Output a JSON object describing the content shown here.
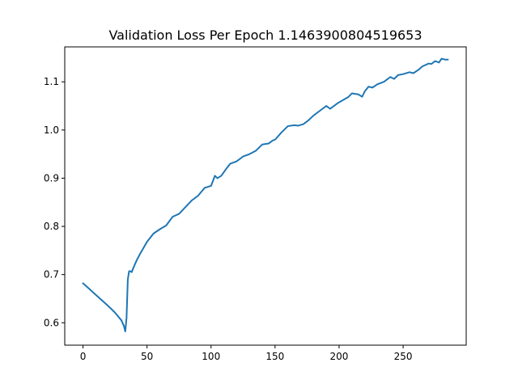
{
  "chart_data": {
    "type": "line",
    "title": "Validation Loss Per Epoch 1.1463900804519653",
    "xlabel": "",
    "ylabel": "",
    "xlim": [
      -14.25,
      299.25
    ],
    "ylim": [
      0.5535,
      1.1725
    ],
    "xticks": [
      0,
      50,
      100,
      150,
      200,
      250
    ],
    "yticks": [
      0.6,
      0.7,
      0.8,
      0.9,
      1.0,
      1.1
    ],
    "ytick_labels": [
      "0.6",
      "0.7",
      "0.8",
      "0.9",
      "1.0",
      "1.1"
    ],
    "grid": false,
    "series": [
      {
        "color": "#1f77b4",
        "x": [
          0,
          5,
          10,
          15,
          20,
          25,
          30,
          32,
          33,
          34,
          35,
          36,
          37,
          38,
          40,
          42,
          45,
          50,
          55,
          60,
          65,
          70,
          75,
          80,
          85,
          90,
          95,
          100,
          103,
          105,
          108,
          112,
          115,
          120,
          125,
          130,
          135,
          140,
          145,
          148,
          150,
          155,
          160,
          165,
          168,
          172,
          176,
          180,
          185,
          190,
          193,
          196,
          199,
          203,
          207,
          210,
          215,
          218,
          220,
          223,
          226,
          230,
          235,
          240,
          243,
          246,
          250,
          255,
          258,
          262,
          265,
          270,
          272,
          275,
          278,
          280,
          283,
          285
        ],
        "y": [
          0.682,
          0.67,
          0.658,
          0.646,
          0.634,
          0.621,
          0.605,
          0.593,
          0.582,
          0.61,
          0.69,
          0.707,
          0.707,
          0.705,
          0.718,
          0.73,
          0.745,
          0.768,
          0.785,
          0.794,
          0.802,
          0.82,
          0.826,
          0.84,
          0.854,
          0.864,
          0.88,
          0.884,
          0.905,
          0.9,
          0.905,
          0.92,
          0.93,
          0.935,
          0.945,
          0.95,
          0.957,
          0.97,
          0.972,
          0.978,
          0.98,
          0.995,
          1.008,
          1.01,
          1.009,
          1.012,
          1.02,
          1.03,
          1.04,
          1.05,
          1.044,
          1.05,
          1.056,
          1.062,
          1.068,
          1.076,
          1.074,
          1.069,
          1.08,
          1.09,
          1.088,
          1.095,
          1.1,
          1.11,
          1.106,
          1.114,
          1.116,
          1.12,
          1.118,
          1.125,
          1.132,
          1.138,
          1.137,
          1.143,
          1.14,
          1.148,
          1.146,
          1.146
        ]
      }
    ]
  }
}
